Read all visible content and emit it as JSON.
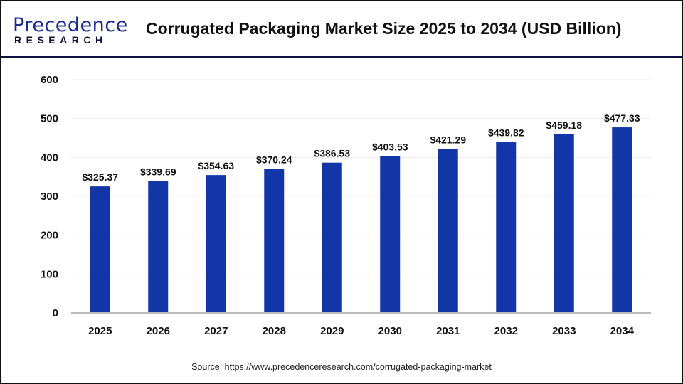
{
  "logo": {
    "main": "Precedence",
    "sub": "RESEARCH"
  },
  "header": {
    "title": "Corrugated Packaging Market Size 2025 to 2034 (USD Billion)"
  },
  "footer": {
    "source": "Source: https://www.precedenceresearch.com/corrugated-packaging-market"
  },
  "chart_data": {
    "type": "bar",
    "title": "Corrugated Packaging Market Size 2025 to 2034 (USD Billion)",
    "categories": [
      "2025",
      "2026",
      "2027",
      "2028",
      "2029",
      "2030",
      "2031",
      "2032",
      "2033",
      "2034"
    ],
    "values": [
      325.37,
      339.69,
      354.63,
      370.24,
      386.53,
      403.53,
      421.29,
      439.82,
      459.18,
      477.33
    ],
    "data_labels": [
      "$325.37",
      "$339.69",
      "$354.63",
      "$370.24",
      "$386.53",
      "$403.53",
      "$421.29",
      "$439.82",
      "$459.18",
      "$477.33"
    ],
    "yticks": [
      0,
      100,
      200,
      300,
      400,
      500,
      600
    ],
    "ylim": [
      0,
      600
    ],
    "xlabel": "",
    "ylabel": "",
    "grid": true,
    "bar_color": "#1236a8",
    "legend": "none"
  }
}
